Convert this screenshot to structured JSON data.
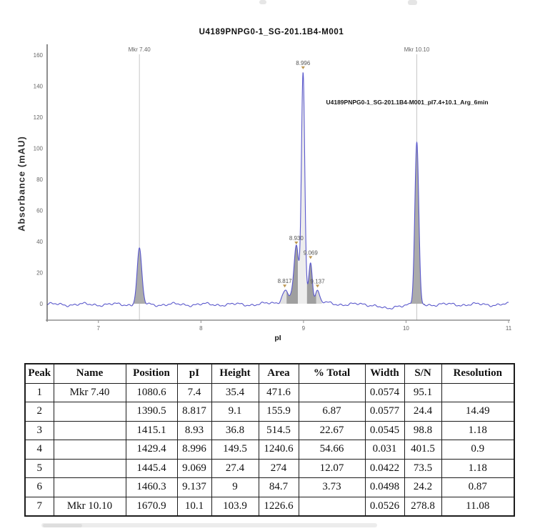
{
  "chart_data": {
    "type": "line",
    "title": "U4189PNPG0-1_SG-201.1B4-M001",
    "xlabel": "pI",
    "ylabel": "Absorbance (mAU)",
    "xlim": [
      6.5,
      11
    ],
    "ylim": [
      -10,
      168
    ],
    "x_ticks": [
      "7",
      "8",
      "9",
      "10",
      "11"
    ],
    "y_ticks": [
      "0",
      "20",
      "40",
      "60",
      "80",
      "100",
      "120",
      "140",
      "160"
    ],
    "grid": false,
    "legend": false,
    "line_color": "#5a58cc",
    "marker_line_color": "#c8c8c8",
    "tick_label_color": "#666666",
    "peak_label_color": "#555555",
    "marker_glyph_color": "#bd9752",
    "annotation": "U4189PNPG0-1_SG-201.1B4-M001_pI7.4+10.1_Arg_6min",
    "marker_lines": [
      {
        "pI": 7.4,
        "label": "Mkr 7.40"
      },
      {
        "pI": 10.105,
        "label": "Mkr 10.10"
      }
    ],
    "peaks": [
      {
        "pI": 7.4,
        "height": 35.4,
        "sigma": 0.023,
        "fill": "#ababab",
        "fill_range": [
          7.33,
          7.475
        ]
      },
      {
        "pI": 8.817,
        "height": 9.1,
        "sigma": 0.026,
        "label": "8.817",
        "fill": "#e2e2e2",
        "fill_range": [
          8.757,
          8.835
        ]
      },
      {
        "pI": 8.93,
        "height": 36.8,
        "sigma": 0.022,
        "label": "8.930",
        "fill": "#9f9f9f",
        "fill_range": [
          8.835,
          8.945
        ]
      },
      {
        "pI": 8.996,
        "height": 149.5,
        "sigma": 0.016,
        "label": "8.996",
        "fill": "#ededed",
        "fill_range": [
          8.945,
          9.034
        ]
      },
      {
        "pI": 9.069,
        "height": 27.4,
        "sigma": 0.017,
        "label": "9.069",
        "fill": "#9f9f9f",
        "fill_range": [
          9.034,
          9.125
        ]
      },
      {
        "pI": 9.137,
        "height": 9.0,
        "sigma": 0.018,
        "label": "9.137",
        "fill": "#d9d9d9",
        "fill_range": [
          9.125,
          9.18
        ]
      },
      {
        "pI": 10.105,
        "height": 103.9,
        "sigma": 0.019,
        "fill": "#ababab",
        "fill_range": [
          10.03,
          10.185
        ]
      }
    ],
    "mounds": [
      {
        "center": 8.95,
        "height": 4.5,
        "sigma": 0.08
      },
      {
        "center": 8.97,
        "height": 2.5,
        "sigma": 0.18
      }
    ],
    "dip": {
      "center": 9.82,
      "height": -3.2,
      "sigma": 0.06
    }
  },
  "peak_table": {
    "headers": [
      "Peak",
      "Name",
      "Position",
      "pI",
      "Height",
      "Area",
      "% Total",
      "Width",
      "S/N",
      "Resolution"
    ],
    "rows": [
      [
        "1",
        "Mkr 7.40",
        "1080.6",
        "7.4",
        "35.4",
        "471.6",
        "",
        "0.0574",
        "95.1",
        ""
      ],
      [
        "2",
        "",
        "1390.5",
        "8.817",
        "9.1",
        "155.9",
        "6.87",
        "0.0577",
        "24.4",
        "14.49"
      ],
      [
        "3",
        "",
        "1415.1",
        "8.93",
        "36.8",
        "514.5",
        "22.67",
        "0.0545",
        "98.8",
        "1.18"
      ],
      [
        "4",
        "",
        "1429.4",
        "8.996",
        "149.5",
        "1240.6",
        "54.66",
        "0.031",
        "401.5",
        "0.9"
      ],
      [
        "5",
        "",
        "1445.4",
        "9.069",
        "27.4",
        "274",
        "12.07",
        "0.0422",
        "73.5",
        "1.18"
      ],
      [
        "6",
        "",
        "1460.3",
        "9.137",
        "9",
        "84.7",
        "3.73",
        "0.0498",
        "24.2",
        "0.87"
      ],
      [
        "7",
        "Mkr 10.10",
        "1670.9",
        "10.1",
        "103.9",
        "1226.6",
        "",
        "0.0526",
        "278.8",
        "11.08"
      ]
    ]
  }
}
